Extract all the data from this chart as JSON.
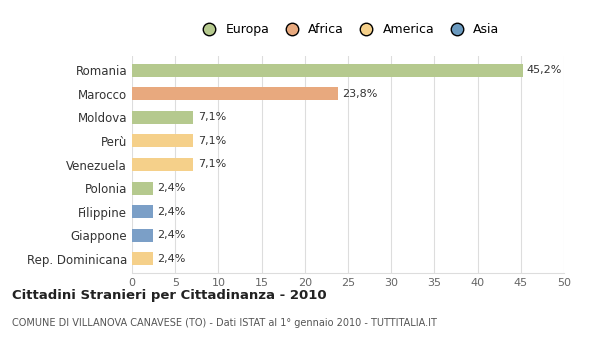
{
  "categories": [
    "Romania",
    "Marocco",
    "Moldova",
    "Perù",
    "Venezuela",
    "Polonia",
    "Filippine",
    "Giappone",
    "Rep. Dominicana"
  ],
  "values": [
    45.2,
    23.8,
    7.1,
    7.1,
    7.1,
    2.4,
    2.4,
    2.4,
    2.4
  ],
  "labels": [
    "45,2%",
    "23,8%",
    "7,1%",
    "7,1%",
    "7,1%",
    "2,4%",
    "2,4%",
    "2,4%",
    "2,4%"
  ],
  "colors": [
    "#b5c98e",
    "#e8a97e",
    "#b5c98e",
    "#f5d08a",
    "#f5d08a",
    "#b5c98e",
    "#7b9fc7",
    "#7b9fc7",
    "#f5d08a"
  ],
  "legend_labels": [
    "Europa",
    "Africa",
    "America",
    "Asia"
  ],
  "legend_colors": [
    "#b5c98e",
    "#e8a97e",
    "#f5d08a",
    "#6b9abf"
  ],
  "xlim": [
    0,
    50
  ],
  "xticks": [
    0,
    5,
    10,
    15,
    20,
    25,
    30,
    35,
    40,
    45,
    50
  ],
  "title": "Cittadini Stranieri per Cittadinanza - 2010",
  "subtitle": "COMUNE DI VILLANOVA CANAVESE (TO) - Dati ISTAT al 1° gennaio 2010 - TUTTITALIA.IT",
  "background_color": "#ffffff",
  "grid_color": "#dddddd"
}
